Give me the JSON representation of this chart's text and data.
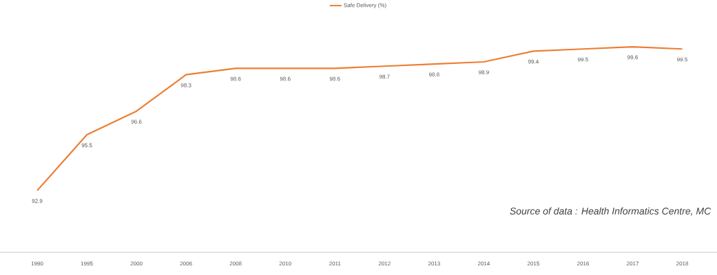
{
  "chart_data": {
    "type": "line",
    "categories": [
      "1990",
      "1995",
      "2000",
      "2006",
      "2008",
      "2010",
      "2011",
      "2012",
      "2013",
      "2014",
      "2015",
      "2016",
      "2017",
      "2018"
    ],
    "series": [
      {
        "name": "Safe Delivery (%)",
        "color": "#ed7d31",
        "values": [
          92.9,
          95.5,
          96.6,
          98.3,
          98.6,
          98.6,
          98.6,
          98.7,
          98.8,
          98.9,
          99.4,
          99.5,
          99.6,
          99.5
        ]
      }
    ],
    "tick_labels": "x",
    "data_labels": true,
    "legend": "top",
    "marker": "none",
    "grid": false,
    "annotations": [
      "Source of data : Health Informatics Centre, MC"
    ]
  }
}
